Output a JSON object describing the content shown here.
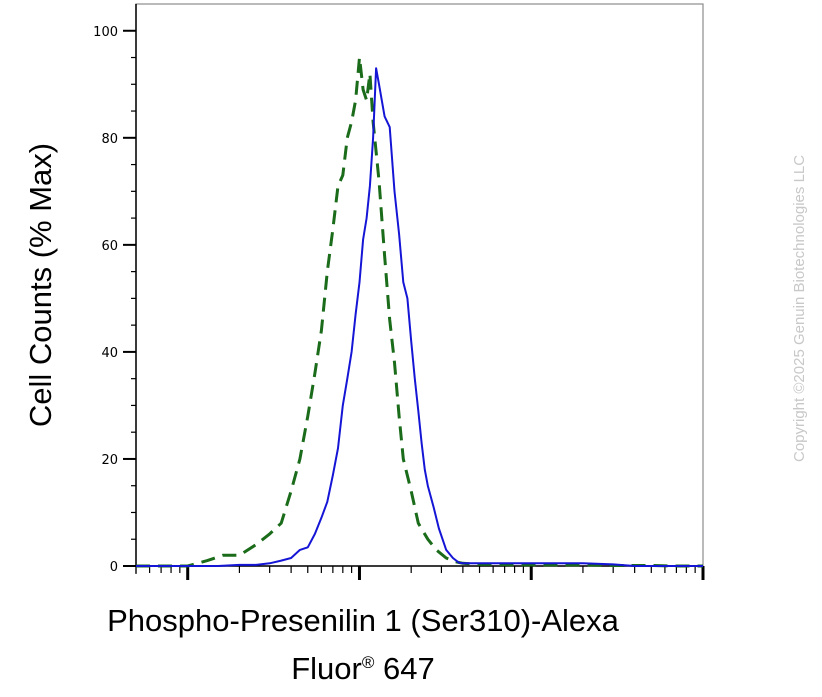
{
  "chart_data": {
    "type": "line",
    "title": "",
    "xlabel_line1": "Phospho-Presenilin 1 (Ser310)-Alexa",
    "xlabel_line2_text": "Fluor",
    "xlabel_line2_mark": "®",
    "xlabel_line2_suffix": " 647",
    "ylabel": "Cell Counts (% Max)",
    "x_scale": "log",
    "xlim": [
      0.5,
      1000
    ],
    "ylim": [
      0,
      105
    ],
    "y_ticks": [
      0,
      20,
      40,
      60,
      80,
      100
    ],
    "y_tick_labels": [
      "0",
      "20",
      "40",
      "60",
      "80",
      "100"
    ],
    "grid": false,
    "legend": "none",
    "series": [
      {
        "style": "dashed",
        "color": "#1a6b1a",
        "x": [
          0.5,
          1.0,
          1.3,
          1.6,
          2.0,
          2.5,
          3.0,
          3.5,
          4.0,
          4.5,
          5.0,
          5.5,
          6.0,
          6.5,
          7.0,
          7.5,
          8.0,
          8.5,
          9.0,
          9.5,
          10.0,
          10.5,
          11.0,
          11.5,
          12.0,
          13.0,
          14.0,
          15.0,
          16.0,
          17.0,
          18.0,
          20.0,
          22.0,
          25.0,
          28.0,
          32.0,
          36.0,
          40.0,
          50.0,
          60.0,
          80.0,
          100.0,
          150.0,
          200.0,
          300.0,
          400.0,
          500.0,
          700.0,
          1000.0
        ],
        "y": [
          0,
          0,
          1,
          2,
          2,
          4,
          6,
          8,
          14,
          20,
          28,
          36,
          44,
          55,
          63,
          71,
          73,
          80,
          83,
          87,
          95,
          89,
          87,
          92,
          83,
          72,
          58,
          46,
          38,
          28,
          20,
          14,
          8,
          5,
          3,
          1.5,
          0.8,
          0.5,
          0.3,
          0.3,
          0.2,
          0.2,
          0.2,
          0.2,
          0.1,
          0.1,
          0.1,
          0,
          0
        ]
      },
      {
        "style": "solid",
        "color": "#1515d6",
        "x": [
          0.5,
          1.5,
          2.0,
          2.5,
          3.0,
          3.5,
          4.0,
          4.5,
          5.0,
          5.5,
          6.0,
          6.5,
          7.0,
          7.5,
          8.0,
          8.5,
          9.0,
          9.5,
          10.0,
          10.5,
          11.0,
          11.5,
          12.0,
          12.5,
          13.0,
          14.0,
          15.0,
          16.0,
          17.0,
          18.0,
          19.0,
          20.0,
          21.0,
          22.0,
          23.0,
          24.0,
          25.0,
          27.0,
          29.0,
          32.0,
          35.0,
          38.0,
          40.0,
          50.0,
          60.0,
          80.0,
          100.0,
          150.0,
          200.0,
          300.0,
          400.0,
          450.0,
          550.0,
          700.0,
          1000.0
        ],
        "y": [
          0,
          0,
          0.2,
          0.2,
          0.5,
          1,
          1.5,
          3,
          3.5,
          6,
          9,
          12,
          17,
          22,
          30,
          35,
          40,
          47,
          53,
          61,
          65,
          71,
          80,
          93,
          90,
          84,
          82,
          70,
          62,
          53,
          50,
          42,
          35,
          29,
          23,
          18,
          15,
          11,
          7,
          3,
          1.5,
          0.6,
          0.5,
          0.5,
          0.5,
          0.5,
          0.5,
          0.5,
          0.5,
          0.3,
          0,
          0,
          0,
          0,
          0
        ]
      }
    ]
  },
  "watermark": "Copyright ©2025 Genuin Biotechnologies LLC"
}
